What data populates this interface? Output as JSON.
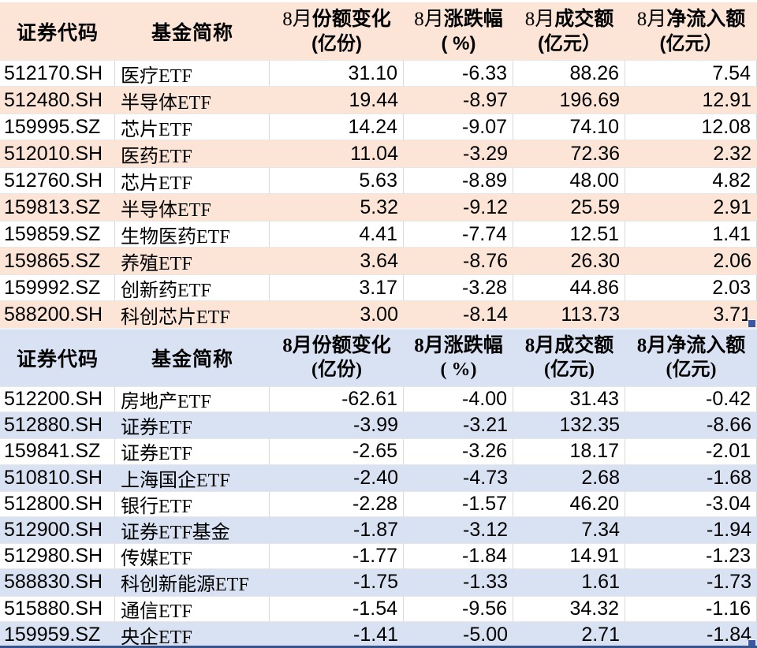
{
  "theme": {
    "table1_fill": "#fce4d6",
    "table2_fill": "#d9e2f3",
    "gridline": "#d9d9d9",
    "selection_handle": "#3a58a3",
    "bottom_border": "#35548e",
    "text": "#000000"
  },
  "table1": {
    "headers": {
      "code": "证券代码",
      "name": "基金简称",
      "cols": [
        {
          "prefix": "8月",
          "title": "份额变化",
          "unit": "(亿份)"
        },
        {
          "prefix": "8月",
          "title": "涨跌幅",
          "unit": "( %)"
        },
        {
          "prefix": "8月",
          "title": "成交额",
          "unit": "(亿元）"
        },
        {
          "prefix": "8月",
          "title": "净流入额",
          "unit": "(亿元）"
        }
      ]
    },
    "rows": [
      {
        "code": "512170.SH",
        "name": "医疗ETF",
        "share_change": "31.10",
        "pct_change": "-6.33",
        "turnover": "88.26",
        "net_inflow": "7.54"
      },
      {
        "code": "512480.SH",
        "name": "半导体ETF",
        "share_change": "19.44",
        "pct_change": "-8.97",
        "turnover": "196.69",
        "net_inflow": "12.91"
      },
      {
        "code": "159995.SZ",
        "name": "芯片ETF",
        "share_change": "14.24",
        "pct_change": "-9.07",
        "turnover": "74.10",
        "net_inflow": "12.08"
      },
      {
        "code": "512010.SH",
        "name": "医药ETF",
        "share_change": "11.04",
        "pct_change": "-3.29",
        "turnover": "72.36",
        "net_inflow": "2.32"
      },
      {
        "code": "512760.SH",
        "name": "芯片ETF",
        "share_change": "5.63",
        "pct_change": "-8.89",
        "turnover": "48.00",
        "net_inflow": "4.82"
      },
      {
        "code": "159813.SZ",
        "name": "半导体ETF",
        "share_change": "5.32",
        "pct_change": "-9.12",
        "turnover": "25.59",
        "net_inflow": "2.91"
      },
      {
        "code": "159859.SZ",
        "name": "生物医药ETF",
        "share_change": "4.41",
        "pct_change": "-7.74",
        "turnover": "12.51",
        "net_inflow": "1.41"
      },
      {
        "code": "159865.SZ",
        "name": "养殖ETF",
        "share_change": "3.64",
        "pct_change": "-8.76",
        "turnover": "26.30",
        "net_inflow": "2.06"
      },
      {
        "code": "159992.SZ",
        "name": "创新药ETF",
        "share_change": "3.17",
        "pct_change": "-3.28",
        "turnover": "44.86",
        "net_inflow": "2.03"
      },
      {
        "code": "588200.SH",
        "name": "科创芯片ETF",
        "share_change": "3.00",
        "pct_change": "-8.14",
        "turnover": "113.73",
        "net_inflow": "3.71"
      }
    ]
  },
  "table2": {
    "headers": {
      "code": "证券代码",
      "name": "基金简称",
      "cols": [
        {
          "prefix": "8月",
          "title": "份额变化",
          "unit": "(亿份)"
        },
        {
          "prefix": "8月",
          "title": "涨跌幅",
          "unit": "( %)"
        },
        {
          "prefix": "8月",
          "title": "成交额",
          "unit": "(亿元)"
        },
        {
          "prefix": "8月",
          "title": "净流入额",
          "unit": "(亿元)"
        }
      ]
    },
    "rows": [
      {
        "code": "512200.SH",
        "name": "房地产ETF",
        "share_change": "-62.61",
        "pct_change": "-4.00",
        "turnover": "31.43",
        "net_inflow": "-0.42"
      },
      {
        "code": "512880.SH",
        "name": "证券ETF",
        "share_change": "-3.99",
        "pct_change": "-3.21",
        "turnover": "132.35",
        "net_inflow": "-8.66"
      },
      {
        "code": "159841.SZ",
        "name": "证券ETF",
        "share_change": "-2.65",
        "pct_change": "-3.26",
        "turnover": "18.17",
        "net_inflow": "-2.01"
      },
      {
        "code": "510810.SH",
        "name": "上海国企ETF",
        "share_change": "-2.40",
        "pct_change": "-4.73",
        "turnover": "2.68",
        "net_inflow": "-1.68"
      },
      {
        "code": "512800.SH",
        "name": "银行ETF",
        "share_change": "-2.28",
        "pct_change": "-1.57",
        "turnover": "46.20",
        "net_inflow": "-3.04"
      },
      {
        "code": "512900.SH",
        "name": "证券ETF基金",
        "share_change": "-1.87",
        "pct_change": "-3.12",
        "turnover": "7.34",
        "net_inflow": "-1.94"
      },
      {
        "code": "512980.SH",
        "name": "传媒ETF",
        "share_change": "-1.77",
        "pct_change": "-1.84",
        "turnover": "14.91",
        "net_inflow": "-1.23"
      },
      {
        "code": "588830.SH",
        "name": "科创新能源ETF",
        "share_change": "-1.75",
        "pct_change": "-1.33",
        "turnover": "1.61",
        "net_inflow": "-1.73"
      },
      {
        "code": "515880.SH",
        "name": "通信ETF",
        "share_change": "-1.54",
        "pct_change": "-9.56",
        "turnover": "34.32",
        "net_inflow": "-1.16"
      },
      {
        "code": "159959.SZ",
        "name": "央企ETF",
        "share_change": "-1.41",
        "pct_change": "-5.00",
        "turnover": "2.71",
        "net_inflow": "-1.84"
      }
    ]
  }
}
